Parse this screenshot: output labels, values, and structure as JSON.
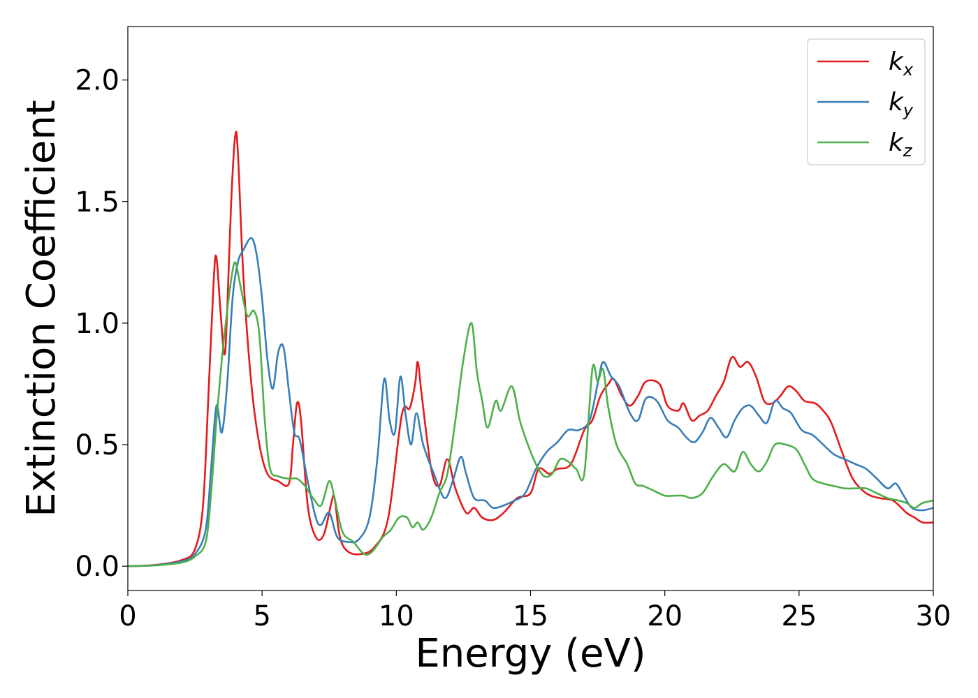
{
  "chart_data": {
    "type": "line",
    "xlabel": "Energy (eV)",
    "ylabel": "Extinction Coefficient",
    "xlim": [
      0,
      30
    ],
    "ylim": [
      -0.1,
      2.22
    ],
    "xticks": [
      0,
      5,
      10,
      15,
      20,
      25,
      30
    ],
    "xtick_labels": [
      "0",
      "5",
      "10",
      "15",
      "20",
      "25",
      "30"
    ],
    "yticks": [
      0.0,
      0.5,
      1.0,
      1.5,
      2.0
    ],
    "ytick_labels": [
      "0.0",
      "0.5",
      "1.0",
      "1.5",
      "2.0"
    ],
    "grid": false,
    "legend_position": "top-right",
    "series": [
      {
        "name": "k_x",
        "label_main": "k",
        "label_sub": "x",
        "color": "#e41a1c",
        "points": [
          [
            0,
            0
          ],
          [
            1,
            0.005
          ],
          [
            2,
            0.025
          ],
          [
            2.5,
            0.07
          ],
          [
            2.8,
            0.25
          ],
          [
            3.0,
            0.7
          ],
          [
            3.2,
            1.18
          ],
          [
            3.3,
            1.27
          ],
          [
            3.45,
            1.05
          ],
          [
            3.6,
            0.87
          ],
          [
            3.7,
            1.05
          ],
          [
            3.85,
            1.5
          ],
          [
            4.0,
            1.77
          ],
          [
            4.1,
            1.7
          ],
          [
            4.3,
            1.2
          ],
          [
            4.6,
            0.75
          ],
          [
            4.9,
            0.5
          ],
          [
            5.2,
            0.38
          ],
          [
            5.6,
            0.35
          ],
          [
            6.0,
            0.34
          ],
          [
            6.15,
            0.5
          ],
          [
            6.3,
            0.67
          ],
          [
            6.45,
            0.6
          ],
          [
            6.7,
            0.25
          ],
          [
            7.0,
            0.12
          ],
          [
            7.3,
            0.13
          ],
          [
            7.6,
            0.27
          ],
          [
            7.7,
            0.28
          ],
          [
            7.9,
            0.12
          ],
          [
            8.2,
            0.06
          ],
          [
            8.7,
            0.05
          ],
          [
            9.2,
            0.08
          ],
          [
            9.7,
            0.2
          ],
          [
            10.2,
            0.62
          ],
          [
            10.5,
            0.65
          ],
          [
            10.7,
            0.75
          ],
          [
            10.8,
            0.84
          ],
          [
            10.95,
            0.7
          ],
          [
            11.3,
            0.4
          ],
          [
            11.6,
            0.33
          ],
          [
            11.9,
            0.44
          ],
          [
            12.2,
            0.32
          ],
          [
            12.6,
            0.22
          ],
          [
            12.9,
            0.24
          ],
          [
            13.2,
            0.2
          ],
          [
            13.6,
            0.19
          ],
          [
            14.0,
            0.22
          ],
          [
            14.5,
            0.28
          ],
          [
            15.0,
            0.3
          ],
          [
            15.3,
            0.4
          ],
          [
            15.7,
            0.38
          ],
          [
            16.0,
            0.4
          ],
          [
            16.5,
            0.42
          ],
          [
            17.0,
            0.56
          ],
          [
            17.3,
            0.6
          ],
          [
            17.6,
            0.7
          ],
          [
            17.9,
            0.75
          ],
          [
            18.1,
            0.77
          ],
          [
            18.4,
            0.7
          ],
          [
            18.7,
            0.66
          ],
          [
            19.0,
            0.7
          ],
          [
            19.3,
            0.76
          ],
          [
            19.8,
            0.75
          ],
          [
            20.1,
            0.66
          ],
          [
            20.5,
            0.64
          ],
          [
            20.7,
            0.67
          ],
          [
            21.0,
            0.6
          ],
          [
            21.3,
            0.62
          ],
          [
            21.6,
            0.64
          ],
          [
            21.9,
            0.7
          ],
          [
            22.2,
            0.76
          ],
          [
            22.5,
            0.86
          ],
          [
            22.8,
            0.82
          ],
          [
            23.1,
            0.84
          ],
          [
            23.4,
            0.78
          ],
          [
            23.7,
            0.68
          ],
          [
            24.0,
            0.67
          ],
          [
            24.3,
            0.7
          ],
          [
            24.6,
            0.74
          ],
          [
            24.9,
            0.72
          ],
          [
            25.2,
            0.68
          ],
          [
            25.6,
            0.67
          ],
          [
            25.9,
            0.64
          ],
          [
            26.2,
            0.59
          ],
          [
            26.6,
            0.47
          ],
          [
            27.0,
            0.36
          ],
          [
            27.5,
            0.3
          ],
          [
            28.0,
            0.28
          ],
          [
            28.5,
            0.27
          ],
          [
            29.0,
            0.22
          ],
          [
            29.3,
            0.2
          ],
          [
            29.6,
            0.18
          ],
          [
            30.0,
            0.18
          ]
        ]
      },
      {
        "name": "k_y",
        "label_main": "k",
        "label_sub": "y",
        "color": "#377eb8",
        "points": [
          [
            0,
            0
          ],
          [
            1,
            0.004
          ],
          [
            2,
            0.02
          ],
          [
            2.5,
            0.05
          ],
          [
            2.9,
            0.15
          ],
          [
            3.1,
            0.4
          ],
          [
            3.3,
            0.66
          ],
          [
            3.5,
            0.55
          ],
          [
            3.7,
            0.75
          ],
          [
            3.9,
            1.1
          ],
          [
            4.1,
            1.25
          ],
          [
            4.3,
            1.3
          ],
          [
            4.6,
            1.35
          ],
          [
            4.8,
            1.28
          ],
          [
            5.0,
            1.1
          ],
          [
            5.2,
            0.85
          ],
          [
            5.4,
            0.73
          ],
          [
            5.6,
            0.88
          ],
          [
            5.8,
            0.9
          ],
          [
            6.0,
            0.72
          ],
          [
            6.2,
            0.55
          ],
          [
            6.4,
            0.52
          ],
          [
            6.7,
            0.35
          ],
          [
            7.0,
            0.2
          ],
          [
            7.2,
            0.17
          ],
          [
            7.5,
            0.22
          ],
          [
            7.8,
            0.12
          ],
          [
            8.2,
            0.1
          ],
          [
            8.6,
            0.11
          ],
          [
            9.0,
            0.2
          ],
          [
            9.3,
            0.45
          ],
          [
            9.55,
            0.77
          ],
          [
            9.75,
            0.6
          ],
          [
            9.95,
            0.55
          ],
          [
            10.15,
            0.78
          ],
          [
            10.35,
            0.62
          ],
          [
            10.55,
            0.5
          ],
          [
            10.75,
            0.63
          ],
          [
            11.0,
            0.5
          ],
          [
            11.4,
            0.38
          ],
          [
            11.8,
            0.28
          ],
          [
            12.1,
            0.35
          ],
          [
            12.4,
            0.45
          ],
          [
            12.6,
            0.38
          ],
          [
            12.9,
            0.28
          ],
          [
            13.3,
            0.27
          ],
          [
            13.6,
            0.24
          ],
          [
            14.0,
            0.25
          ],
          [
            14.4,
            0.27
          ],
          [
            14.8,
            0.3
          ],
          [
            15.2,
            0.4
          ],
          [
            15.6,
            0.47
          ],
          [
            16.0,
            0.51
          ],
          [
            16.4,
            0.56
          ],
          [
            16.8,
            0.56
          ],
          [
            17.2,
            0.6
          ],
          [
            17.5,
            0.75
          ],
          [
            17.7,
            0.84
          ],
          [
            18.0,
            0.78
          ],
          [
            18.3,
            0.74
          ],
          [
            18.7,
            0.63
          ],
          [
            19.0,
            0.6
          ],
          [
            19.3,
            0.69
          ],
          [
            19.7,
            0.68
          ],
          [
            20.1,
            0.6
          ],
          [
            20.5,
            0.57
          ],
          [
            20.8,
            0.53
          ],
          [
            21.1,
            0.51
          ],
          [
            21.4,
            0.55
          ],
          [
            21.7,
            0.61
          ],
          [
            22.0,
            0.57
          ],
          [
            22.3,
            0.53
          ],
          [
            22.6,
            0.6
          ],
          [
            22.9,
            0.65
          ],
          [
            23.2,
            0.66
          ],
          [
            23.5,
            0.62
          ],
          [
            23.8,
            0.59
          ],
          [
            24.1,
            0.68
          ],
          [
            24.4,
            0.65
          ],
          [
            24.7,
            0.63
          ],
          [
            25.1,
            0.56
          ],
          [
            25.5,
            0.54
          ],
          [
            25.9,
            0.5
          ],
          [
            26.3,
            0.46
          ],
          [
            26.7,
            0.44
          ],
          [
            27.1,
            0.42
          ],
          [
            27.5,
            0.4
          ],
          [
            27.9,
            0.36
          ],
          [
            28.3,
            0.32
          ],
          [
            28.6,
            0.34
          ],
          [
            28.9,
            0.29
          ],
          [
            29.2,
            0.24
          ],
          [
            29.6,
            0.23
          ],
          [
            30.0,
            0.24
          ]
        ]
      },
      {
        "name": "k_z",
        "label_main": "k",
        "label_sub": "z",
        "color": "#4daf4a",
        "points": [
          [
            0,
            0
          ],
          [
            1,
            0.003
          ],
          [
            2,
            0.015
          ],
          [
            2.5,
            0.04
          ],
          [
            2.9,
            0.1
          ],
          [
            3.1,
            0.3
          ],
          [
            3.3,
            0.6
          ],
          [
            3.5,
            0.85
          ],
          [
            3.7,
            1.05
          ],
          [
            3.85,
            1.18
          ],
          [
            4.0,
            1.25
          ],
          [
            4.2,
            1.15
          ],
          [
            4.45,
            1.03
          ],
          [
            4.7,
            1.05
          ],
          [
            4.9,
            0.95
          ],
          [
            5.1,
            0.6
          ],
          [
            5.3,
            0.4
          ],
          [
            5.6,
            0.37
          ],
          [
            6.0,
            0.36
          ],
          [
            6.3,
            0.36
          ],
          [
            6.6,
            0.33
          ],
          [
            6.9,
            0.28
          ],
          [
            7.2,
            0.25
          ],
          [
            7.5,
            0.35
          ],
          [
            7.7,
            0.28
          ],
          [
            8.0,
            0.14
          ],
          [
            8.4,
            0.1
          ],
          [
            8.8,
            0.05
          ],
          [
            9.1,
            0.06
          ],
          [
            9.5,
            0.12
          ],
          [
            9.8,
            0.15
          ],
          [
            10.1,
            0.2
          ],
          [
            10.4,
            0.2
          ],
          [
            10.6,
            0.16
          ],
          [
            10.8,
            0.18
          ],
          [
            11.0,
            0.15
          ],
          [
            11.3,
            0.2
          ],
          [
            11.6,
            0.3
          ],
          [
            11.9,
            0.38
          ],
          [
            12.2,
            0.6
          ],
          [
            12.5,
            0.85
          ],
          [
            12.8,
            1.0
          ],
          [
            13.0,
            0.8
          ],
          [
            13.2,
            0.68
          ],
          [
            13.4,
            0.57
          ],
          [
            13.7,
            0.68
          ],
          [
            13.9,
            0.64
          ],
          [
            14.3,
            0.74
          ],
          [
            14.6,
            0.6
          ],
          [
            14.9,
            0.5
          ],
          [
            15.2,
            0.42
          ],
          [
            15.5,
            0.37
          ],
          [
            15.8,
            0.38
          ],
          [
            16.1,
            0.44
          ],
          [
            16.4,
            0.43
          ],
          [
            16.7,
            0.4
          ],
          [
            17.0,
            0.38
          ],
          [
            17.3,
            0.81
          ],
          [
            17.5,
            0.76
          ],
          [
            17.7,
            0.81
          ],
          [
            17.9,
            0.65
          ],
          [
            18.2,
            0.5
          ],
          [
            18.6,
            0.42
          ],
          [
            18.9,
            0.34
          ],
          [
            19.2,
            0.33
          ],
          [
            19.6,
            0.31
          ],
          [
            20.0,
            0.29
          ],
          [
            20.3,
            0.29
          ],
          [
            20.7,
            0.29
          ],
          [
            21.0,
            0.28
          ],
          [
            21.4,
            0.3
          ],
          [
            21.8,
            0.37
          ],
          [
            22.2,
            0.42
          ],
          [
            22.6,
            0.39
          ],
          [
            22.9,
            0.47
          ],
          [
            23.2,
            0.42
          ],
          [
            23.5,
            0.39
          ],
          [
            23.8,
            0.43
          ],
          [
            24.1,
            0.5
          ],
          [
            24.5,
            0.5
          ],
          [
            24.9,
            0.48
          ],
          [
            25.2,
            0.42
          ],
          [
            25.5,
            0.36
          ],
          [
            25.9,
            0.34
          ],
          [
            26.3,
            0.33
          ],
          [
            26.7,
            0.32
          ],
          [
            27.1,
            0.32
          ],
          [
            27.5,
            0.32
          ],
          [
            27.9,
            0.3
          ],
          [
            28.3,
            0.28
          ],
          [
            28.7,
            0.27
          ],
          [
            29.0,
            0.26
          ],
          [
            29.3,
            0.24
          ],
          [
            29.6,
            0.26
          ],
          [
            30.0,
            0.27
          ]
        ]
      }
    ]
  }
}
